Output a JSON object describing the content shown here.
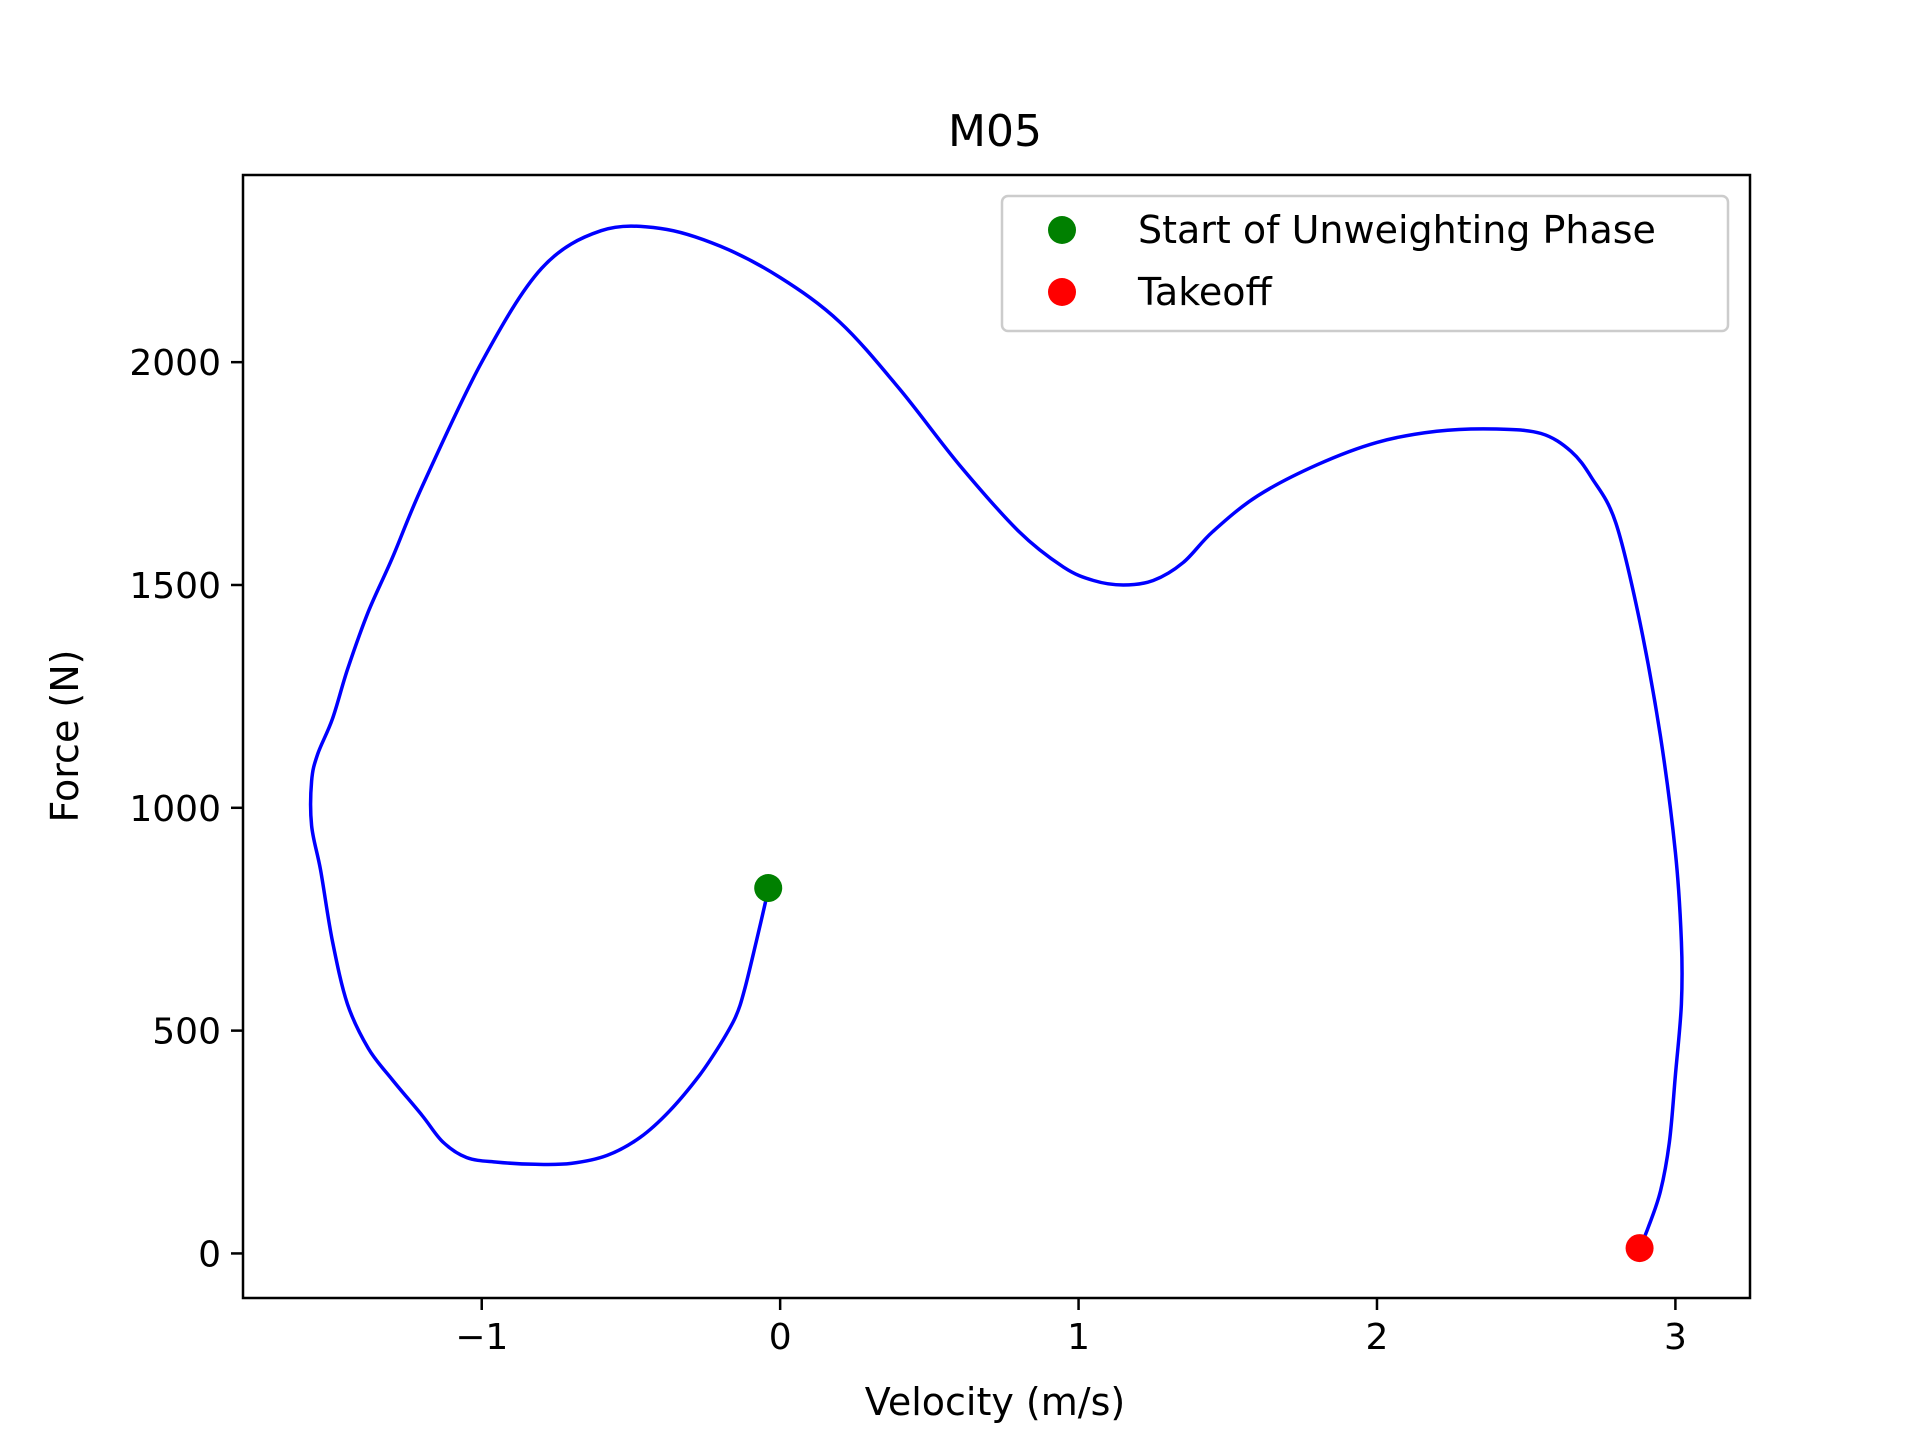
{
  "chart_data": {
    "type": "line",
    "title": "M05",
    "xlabel": "Velocity (m/s)",
    "ylabel": "Force (N)",
    "xlim": [
      -1.8,
      3.25
    ],
    "ylim": [
      -100,
      2420
    ],
    "xticks": [
      -1,
      0,
      1,
      2,
      3
    ],
    "xtick_labels": [
      "−1",
      "0",
      "1",
      "2",
      "3"
    ],
    "yticks": [
      0,
      500,
      1000,
      1500,
      2000
    ],
    "ytick_labels": [
      "0",
      "500",
      "1000",
      "1500",
      "2000"
    ],
    "grid": false,
    "legend_position": "top-right",
    "series": [
      {
        "color": "#0000ff",
        "x": [
          -0.04,
          -0.08,
          -0.12,
          -0.15,
          -0.2,
          -0.27,
          -0.37,
          -0.47,
          -0.58,
          -0.7,
          -0.82,
          -0.95,
          -1.05,
          -1.13,
          -1.2,
          -1.3,
          -1.38,
          -1.45,
          -1.5,
          -1.54,
          -1.57,
          -1.57,
          -1.55,
          -1.5,
          -1.45,
          -1.38,
          -1.3,
          -1.2,
          -1.0,
          -0.8,
          -0.6,
          -0.4,
          -0.2,
          0.0,
          0.2,
          0.4,
          0.6,
          0.8,
          0.95,
          1.05,
          1.15,
          1.25,
          1.35,
          1.45,
          1.6,
          1.8,
          2.0,
          2.2,
          2.4,
          2.55,
          2.65,
          2.72,
          2.8,
          2.88,
          2.95,
          3.0,
          3.02,
          3.02,
          3.0,
          2.98,
          2.95,
          2.91,
          2.88
        ],
        "y": [
          815,
          700,
          590,
          530,
          470,
          400,
          320,
          260,
          220,
          202,
          200,
          205,
          215,
          250,
          310,
          390,
          460,
          560,
          700,
          860,
          960,
          1060,
          1120,
          1200,
          1310,
          1440,
          1560,
          1720,
          2000,
          2210,
          2295,
          2300,
          2260,
          2190,
          2090,
          1940,
          1770,
          1620,
          1540,
          1510,
          1500,
          1510,
          1550,
          1620,
          1700,
          1770,
          1820,
          1845,
          1850,
          1840,
          1800,
          1740,
          1640,
          1420,
          1160,
          900,
          700,
          560,
          400,
          250,
          140,
          60,
          12
        ]
      }
    ],
    "markers": [
      {
        "name": "Start of Unweighting Phase",
        "x": -0.04,
        "y": 820,
        "color": "#008000"
      },
      {
        "name": "Takeoff",
        "x": 2.88,
        "y": 12,
        "color": "#ff0000"
      }
    ]
  }
}
